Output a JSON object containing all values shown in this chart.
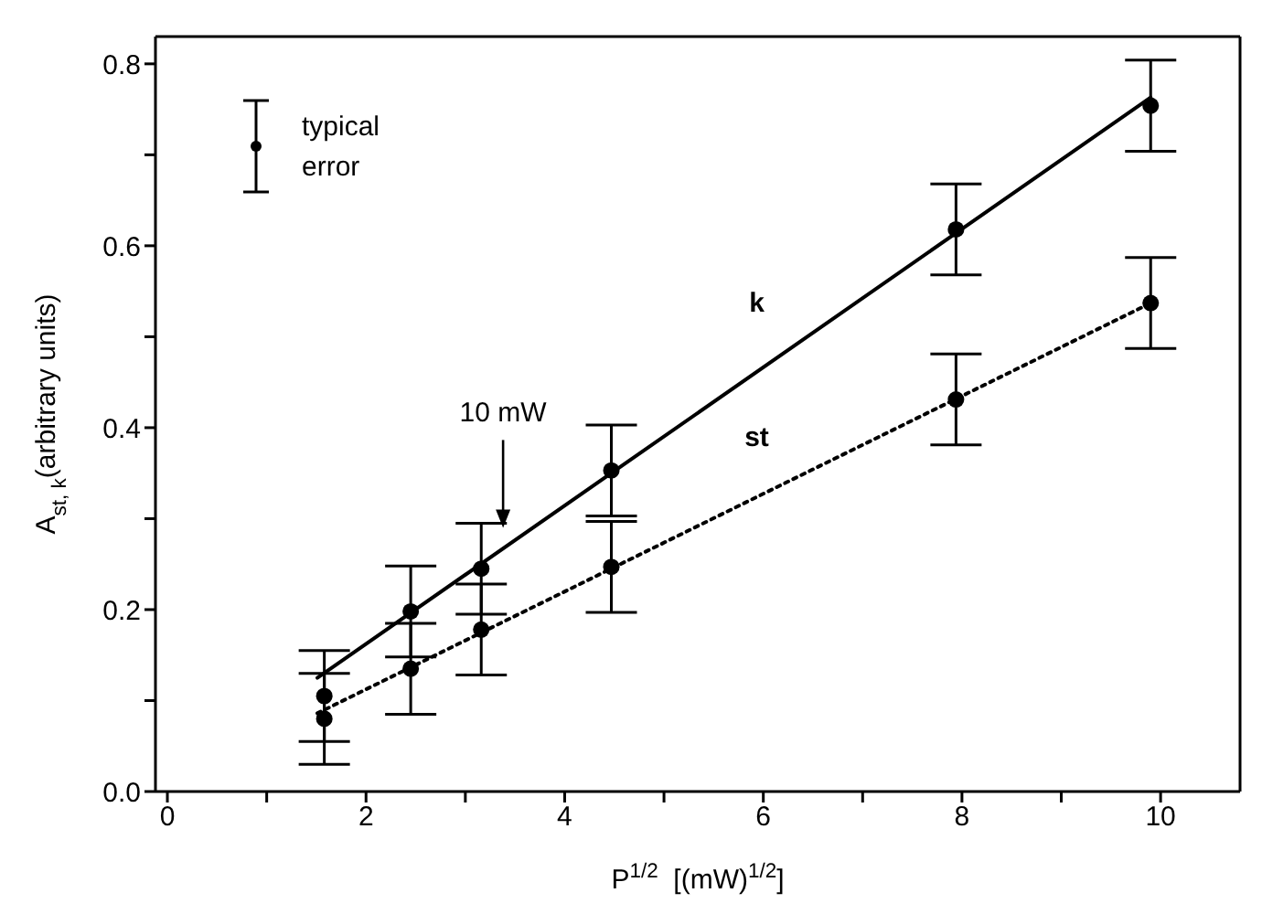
{
  "chart_data": {
    "type": "scatter",
    "xlabel": "P$^{1/2}$  [(mW)$^{1/2}$]",
    "ylabel": "A$_{st, k}$(arbitrary units)",
    "xlim": [
      -0.12,
      10.8
    ],
    "ylim": [
      0,
      0.83
    ],
    "xticks": [
      {
        "value": 0,
        "label": "0"
      },
      {
        "value": 1,
        "label": null
      },
      {
        "value": 2,
        "label": "2"
      },
      {
        "value": 3,
        "label": null
      },
      {
        "value": 4,
        "label": "4"
      },
      {
        "value": 5,
        "label": null
      },
      {
        "value": 6,
        "label": "6"
      },
      {
        "value": 7,
        "label": null
      },
      {
        "value": 8,
        "label": "8"
      },
      {
        "value": 9,
        "label": null
      },
      {
        "value": 10,
        "label": "10"
      }
    ],
    "yticks": [
      {
        "value": 0,
        "label": "0.0"
      },
      {
        "value": 0.1,
        "label": null
      },
      {
        "value": 0.2,
        "label": "0.2"
      },
      {
        "value": 0.3,
        "label": null
      },
      {
        "value": 0.4,
        "label": "0.4"
      },
      {
        "value": 0.5,
        "label": null
      },
      {
        "value": 0.6,
        "label": "0.6"
      },
      {
        "value": 0.7,
        "label": null
      },
      {
        "value": 0.8,
        "label": "0.8"
      }
    ],
    "grid": false,
    "legend": false,
    "series": [
      {
        "color": "#000000",
        "marker": "circle",
        "x": [
          1.58,
          2.45,
          3.16,
          4.47,
          7.94,
          9.9
        ],
        "values": [
          0.105,
          0.198,
          0.245,
          0.353,
          0.618,
          0.754
        ],
        "errors": [
          0.05,
          0.05,
          0.05,
          0.05,
          0.05,
          0.05
        ]
      },
      {
        "color": "#000000",
        "marker": "circle",
        "x": [
          1.58,
          2.45,
          3.16,
          4.47,
          7.94,
          9.9
        ],
        "values": [
          0.08,
          0.135,
          0.178,
          0.247,
          0.431,
          0.537
        ],
        "errors": [
          0.05,
          0.05,
          0.05,
          0.05,
          0.05,
          0.05
        ]
      },
      {
        "type": "line",
        "name": "k",
        "color": "#000000",
        "line_style": "solid",
        "marker": "none",
        "x": [
          1.51,
          9.9
        ],
        "values": [
          0.125,
          0.763
        ]
      },
      {
        "type": "line",
        "name": "st",
        "color": "#000000",
        "line_style": "dotted",
        "marker": "none",
        "x": [
          1.51,
          9.9
        ],
        "values": [
          0.086,
          0.537
        ]
      }
    ],
    "annotations": [
      "typical error",
      {
        "text": "10 mW",
        "x": 3.38,
        "y": 0.29
      }
    ]
  }
}
